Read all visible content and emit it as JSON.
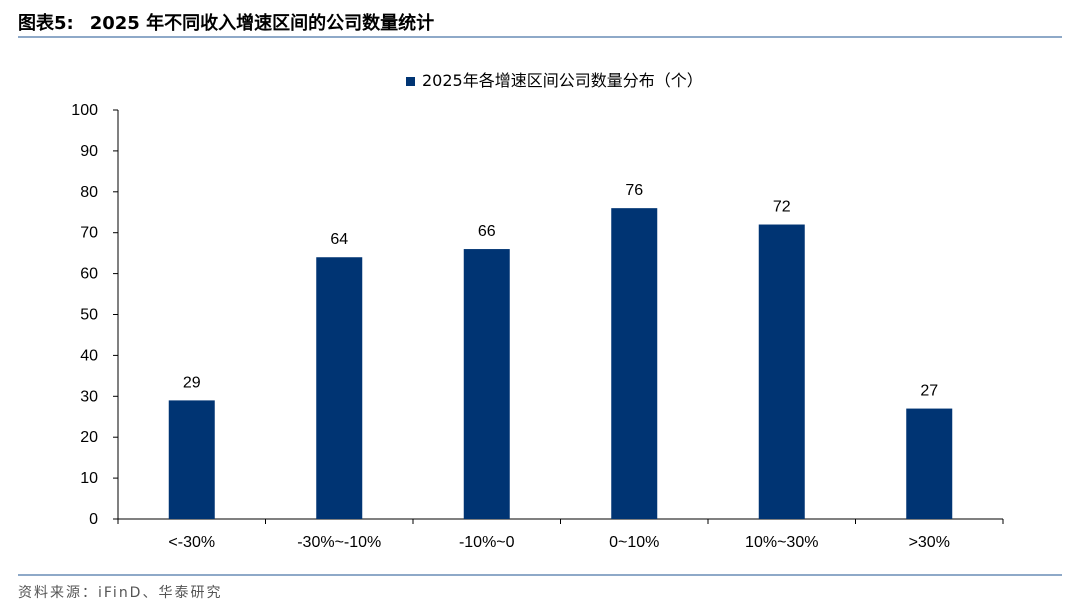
{
  "header": {
    "figure_label": "图表5:",
    "figure_title": "2025 年不同收入增速区间的公司数量统计"
  },
  "footer": {
    "source": "资料来源：iFinD、华泰研究"
  },
  "colors": {
    "bar": "#003473",
    "rule": "#8ea9c8",
    "axis": "#000000"
  },
  "chart_data": {
    "type": "bar",
    "title": "",
    "categories": [
      "<-30%",
      "-30%~-10%",
      "-10%~0",
      "0~10%",
      "10%~30%",
      ">30%"
    ],
    "series": [
      {
        "name": "2025年各增速区间公司数量分布（个）",
        "values": [
          29,
          64,
          66,
          76,
          72,
          27
        ]
      }
    ],
    "ylim": [
      0,
      100
    ],
    "yticks": [
      0,
      10,
      20,
      30,
      40,
      50,
      60,
      70,
      80,
      90,
      100
    ],
    "xlabel": "",
    "ylabel": "",
    "grid": false,
    "legend": "top-center",
    "data_labels": true
  }
}
